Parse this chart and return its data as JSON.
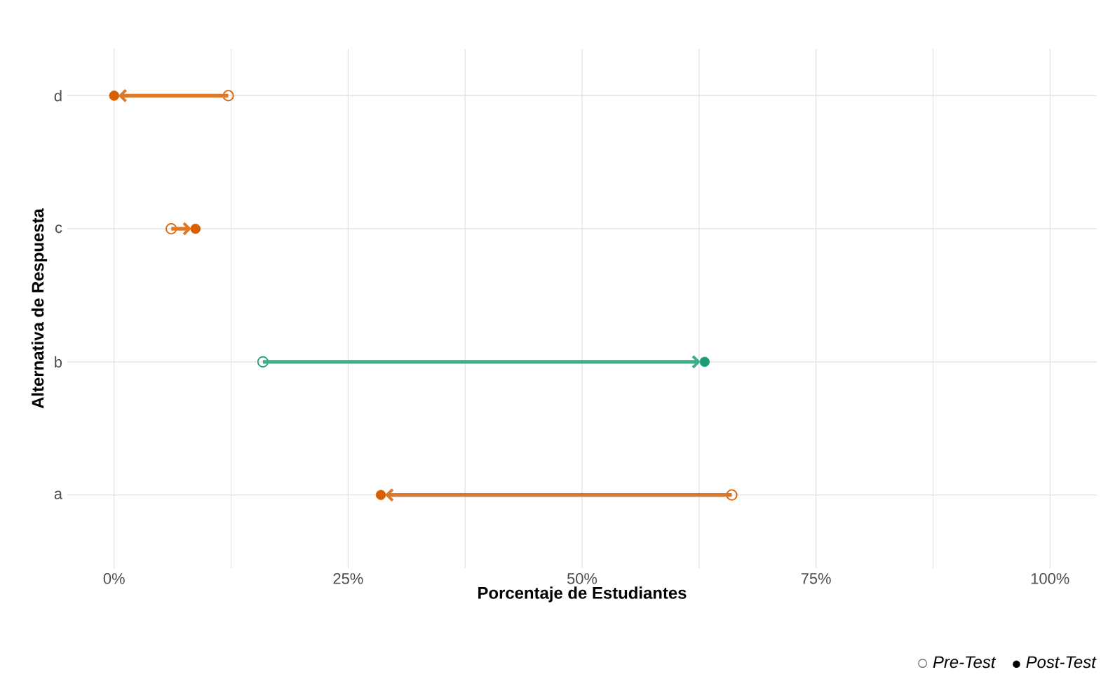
{
  "chart_data": {
    "type": "scatter",
    "orientation": "horizontal",
    "xlabel": "Porcentaje de Estudiantes",
    "ylabel": "Alternativa de Respuesta",
    "categories": [
      "d",
      "c",
      "b",
      "a"
    ],
    "series": [
      {
        "name": "*Pre-Test*",
        "color": "#000000",
        "colors": [
          "#d95f02",
          "#d95f02",
          "#1b9e77",
          "#d95f02"
        ],
        "values": [
          12.2,
          6.1,
          15.9,
          66.0
        ]
      },
      {
        "name": "*Post-Test*",
        "color": "#000000",
        "colors": [
          "#d95f02",
          "#d95f02",
          "#1b9e77",
          "#d95f02"
        ],
        "values": [
          0,
          8.7,
          63.1,
          28.5
        ]
      }
    ],
    "xlim": [
      -5,
      105
    ],
    "xticks": [
      {
        "value": 0,
        "label": "0%"
      },
      {
        "value": 12.5,
        "label": null
      },
      {
        "value": 25,
        "label": "25%"
      },
      {
        "value": 37.5,
        "label": null
      },
      {
        "value": 50,
        "label": "50%"
      },
      {
        "value": 62.5,
        "label": null
      },
      {
        "value": 75,
        "label": "75%"
      },
      {
        "value": 87.5,
        "label": null
      },
      {
        "value": 100,
        "label": "100%"
      }
    ],
    "grid": true,
    "legend": "bottom right",
    "marker": "circle"
  }
}
